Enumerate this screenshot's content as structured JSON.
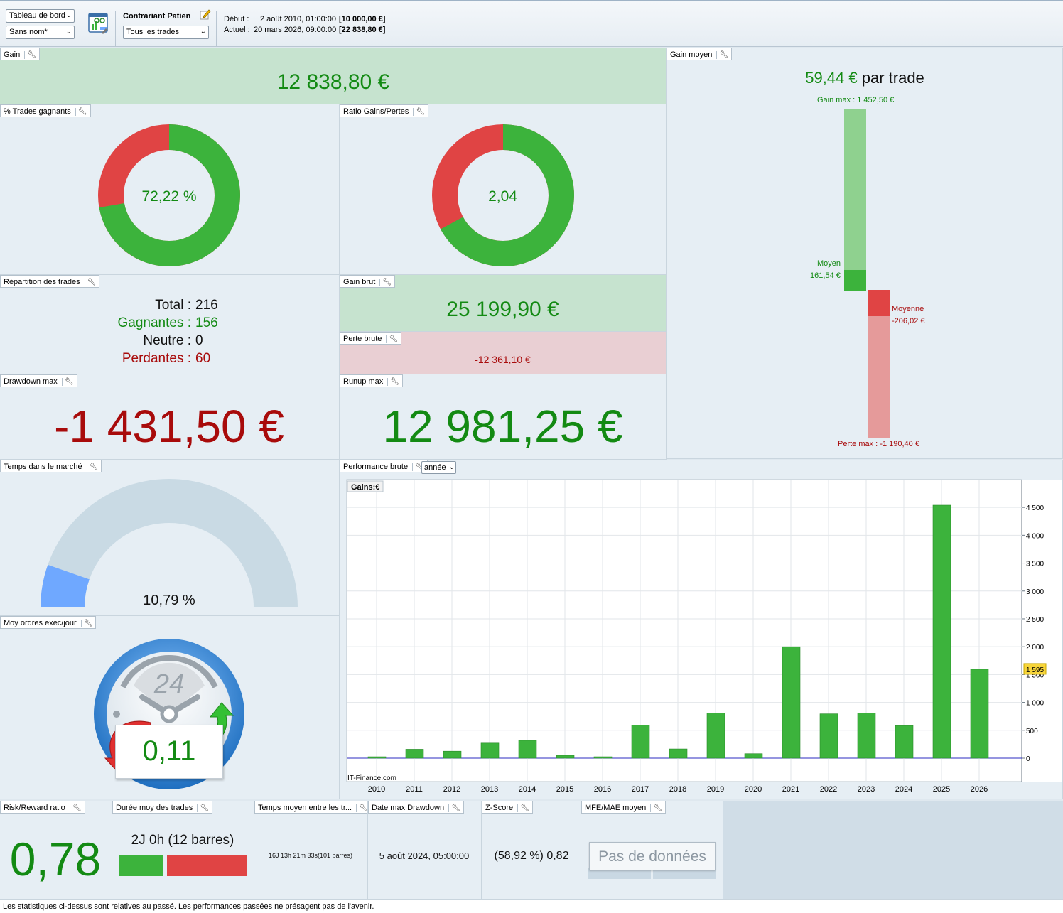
{
  "toolbar": {
    "view_select": "Tableau de bord",
    "name_select": "Sans nom*",
    "strategy_name": "Contrariant Patien",
    "trades_select": "Tous les trades",
    "start_label": "Début :",
    "start_value": "2 août 2010, 01:00:00",
    "start_amount": "[10 000,00 €]",
    "current_label": "Actuel :",
    "current_value": "20 mars 2026, 09:00:00",
    "current_amount": "[22 838,80 €]"
  },
  "gain": {
    "title": "Gain",
    "value": "12 838,80 €"
  },
  "gain_moyen": {
    "title": "Gain moyen",
    "value": "59,44 €",
    "suffix": "par trade",
    "max_label": "Gain max : 1 452,50 €",
    "avg_gain_label": "Moyen",
    "avg_gain_value": "161,54 €",
    "avg_loss_label": "Moyenne",
    "avg_loss_value": "-206,02 €",
    "min_label": "Perte max : -1 190,40 €",
    "gain_max": 1452.5,
    "gain_avg": 161.54,
    "loss_avg": -206.02,
    "loss_max": -1190.4
  },
  "pct_winning": {
    "title": "% Trades gagnants",
    "value": "72,22 %",
    "fraction": 0.7222
  },
  "ratio": {
    "title": "Ratio Gains/Pertes",
    "value": "2,04",
    "fraction": 0.671
  },
  "repartition": {
    "title": "Répartition des trades",
    "total_label": "Total :",
    "total": "216",
    "win_label": "Gagnantes :",
    "win": "156",
    "neutral_label": "Neutre :",
    "neutral": "0",
    "loss_label": "Perdantes :",
    "loss": "60"
  },
  "gain_brut": {
    "title": "Gain brut",
    "value": "25 199,90 €"
  },
  "perte_brute": {
    "title": "Perte brute",
    "value": "-12 361,10 €"
  },
  "drawdown": {
    "title": "Drawdown max",
    "value": "-1 431,50 €"
  },
  "runup": {
    "title": "Runup max",
    "value": "12 981,25 €"
  },
  "temps_marche": {
    "title": "Temps dans le marché",
    "value": "10,79 %",
    "fraction": 0.1079
  },
  "moy_ordres": {
    "title": "Moy ordres exec/jour",
    "value": "0,11",
    "clock_label": "24"
  },
  "performance": {
    "title": "Performance brute",
    "period_select": "année",
    "series_label": "Gains:€",
    "watermark": "IT-Finance.com",
    "last_value_badge": "1 595"
  },
  "chart_data": {
    "type": "bar",
    "categories": [
      "2010",
      "2011",
      "2012",
      "2013",
      "2014",
      "2015",
      "2016",
      "2017",
      "2018",
      "2019",
      "2020",
      "2021",
      "2022",
      "2023",
      "2024",
      "2025",
      "2026"
    ],
    "values": [
      25,
      160,
      125,
      270,
      320,
      50,
      25,
      590,
      165,
      810,
      80,
      2000,
      795,
      810,
      585,
      4540,
      1595
    ],
    "ylim": [
      0,
      5000
    ],
    "yticks": [
      0,
      500,
      1000,
      1500,
      2000,
      2500,
      3000,
      3500,
      4000,
      4500
    ],
    "ytick_labels": [
      "0",
      "500",
      "1 000",
      "1 500",
      "2 000",
      "2 500",
      "3 000",
      "3 500",
      "4 000",
      "4 500"
    ],
    "bar_color": "#3cb33c",
    "grid": true
  },
  "risk_reward": {
    "title": "Risk/Reward ratio",
    "value": "0,78"
  },
  "duree_moy": {
    "title": "Durée moy des trades",
    "value": "2J 0h (12 barres)"
  },
  "temps_moyen": {
    "title": "Temps moyen entre les tr...",
    "value": "16J 13h 21m 33s(101 barres)"
  },
  "date_max_dd": {
    "title": "Date max Drawdown",
    "value": "5 août 2024, 05:00:00"
  },
  "zscore": {
    "title": "Z-Score",
    "value": "(58,92 %) 0,82"
  },
  "mfe_mae": {
    "title": "MFE/MAE moyen",
    "value": "Pas de données"
  },
  "footer": {
    "text": "Les statistiques ci-dessus sont relatives au passé. Les performances passées ne présagent pas de l'avenir."
  },
  "colors": {
    "green": "#3cb33c",
    "red": "#e04444",
    "blue": "#6fa8ff",
    "text_green": "#138a13",
    "text_red": "#a80b0b"
  }
}
